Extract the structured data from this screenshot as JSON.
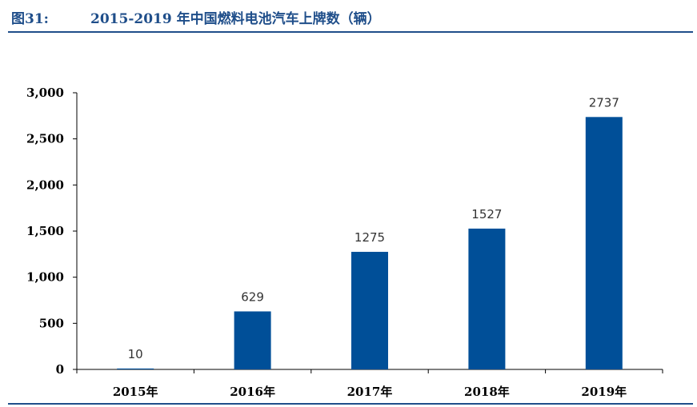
{
  "header": {
    "figure_label": "图31:",
    "title": "2015-2019 年中国燃料电池汽车上牌数（辆）"
  },
  "colors": {
    "bar": "#004f98",
    "rule": "#1f4e8a"
  },
  "chart_data": {
    "type": "bar",
    "categories": [
      "2015年",
      "2016年",
      "2017年",
      "2018年",
      "2019年"
    ],
    "values": [
      10,
      629,
      1275,
      1527,
      2737
    ],
    "data_labels": [
      "10",
      "629",
      "1275",
      "1527",
      "2737"
    ],
    "ylim": [
      0,
      3000
    ],
    "yticks": [
      0,
      500,
      1000,
      1500,
      2000,
      2500,
      3000
    ],
    "ytick_labels": [
      "0",
      "500",
      "1,000",
      "1,500",
      "2,000",
      "2,500",
      "3,000"
    ],
    "grid": false,
    "legend": "none"
  }
}
